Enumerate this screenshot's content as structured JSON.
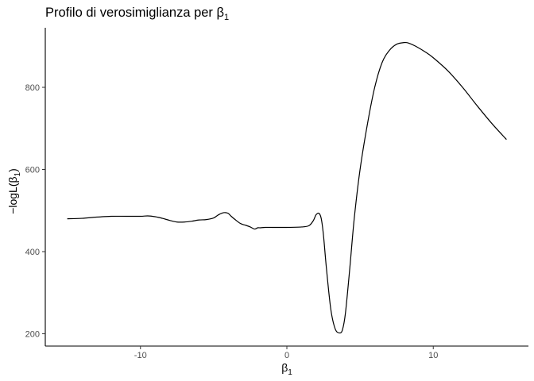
{
  "chart_data": {
    "type": "line",
    "title": "Profilo di verosimiglianza per β",
    "title_subscript": "1",
    "xlabel": "β",
    "xlabel_subscript": "1",
    "ylabel": "−logL(β",
    "ylabel_subscript": "1",
    "ylabel_suffix": ")",
    "xlim": [
      -16.5,
      16.5
    ],
    "ylim": [
      170,
      945
    ],
    "xticks": [
      -10,
      0,
      10
    ],
    "xtick_labels": [
      "-10",
      "0",
      "10"
    ],
    "yticks": [
      200,
      400,
      600,
      800
    ],
    "ytick_labels": [
      "200",
      "400",
      "600",
      "800"
    ],
    "grid": false,
    "line_color": "#000000",
    "series": [
      {
        "x": [
          -15,
          -14,
          -13,
          -12,
          -11,
          -10,
          -9.5,
          -9,
          -8.5,
          -8,
          -7.5,
          -7,
          -6.5,
          -6,
          -5.5,
          -5,
          -4.7,
          -4.4,
          -4.2,
          -4.0,
          -3.8,
          -3.5,
          -3.2,
          -3.0,
          -2.8,
          -2.5,
          -2.2,
          -2.0,
          -1.8,
          -1.5,
          -1.0,
          0,
          1.0,
          1.5,
          1.8,
          2.0,
          2.2,
          2.35,
          2.5,
          2.7,
          3.0,
          3.3,
          3.6,
          3.8,
          4.0,
          4.3,
          4.6,
          5.0,
          5.5,
          6.0,
          6.5,
          7.0,
          7.5,
          8.0,
          8.3,
          8.8,
          9.5,
          10,
          11,
          12,
          13,
          14,
          15
        ],
        "values": [
          480,
          481,
          484,
          486,
          486,
          486,
          487,
          485,
          481,
          476,
          472,
          472,
          474,
          477,
          478,
          482,
          489,
          494,
          495,
          493,
          486,
          477,
          469,
          466,
          464,
          460,
          455,
          458,
          458,
          459,
          459,
          459,
          460,
          463,
          475,
          490,
          493,
          480,
          440,
          360,
          260,
          212,
          202,
          210,
          250,
          360,
          480,
          600,
          710,
          800,
          860,
          890,
          905,
          909,
          908,
          900,
          885,
          872,
          840,
          800,
          755,
          712,
          673
        ]
      }
    ]
  }
}
